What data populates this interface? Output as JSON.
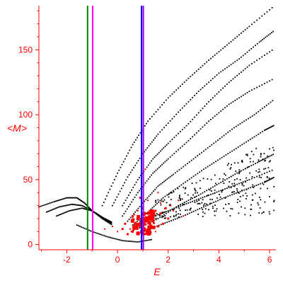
{
  "chart_data": {
    "type": "scatter",
    "title": "",
    "xlabel": "E",
    "ylabel": "<M>",
    "xlim": [
      -3.1,
      6.25
    ],
    "ylim": [
      -4,
      184
    ],
    "x_ticks": [
      -2,
      0,
      2,
      4,
      6
    ],
    "y_ticks": [
      0,
      50,
      100,
      150
    ],
    "grid": false,
    "legend": "none",
    "colors": {
      "axes": "#ff0000",
      "black_points": "#000000",
      "red_points": "#ff0000",
      "line_green": "#008000",
      "line_magenta": "#ff00ff",
      "line_blue": "#0000ff",
      "line_purple": "#a000e0"
    },
    "vertical_lines": [
      {
        "name": "green",
        "x": -1.18,
        "color": "#008000"
      },
      {
        "name": "magenta",
        "x": -0.98,
        "color": "#ff00ff"
      },
      {
        "name": "blue",
        "x": 0.95,
        "color": "#0000ff"
      },
      {
        "name": "purple",
        "x": 1.02,
        "color": "#a000e0"
      }
    ],
    "black_curves": [
      {
        "x": [
          -3.1,
          -2.5,
          -2.0,
          -1.6,
          -1.3,
          -1.0,
          -0.6,
          -0.2
        ],
        "y": [
          29,
          33,
          36,
          36,
          32,
          26,
          20,
          15
        ]
      },
      {
        "x": [
          -2.8,
          -2.3,
          -1.8,
          -1.4,
          -1.0,
          -0.6,
          -0.2
        ],
        "y": [
          25,
          29,
          31,
          30,
          26,
          21,
          16
        ]
      },
      {
        "x": [
          -2.4,
          -1.9,
          -1.4,
          -1.0,
          -0.6,
          -0.2
        ],
        "y": [
          22,
          26,
          28,
          26,
          21,
          17
        ]
      },
      {
        "x": [
          -0.6,
          0.0,
          0.6,
          1.2,
          2.0,
          2.8,
          3.6,
          4.4,
          5.2,
          6.2
        ],
        "y": [
          30,
          55,
          77,
          95,
          113,
          128,
          142,
          155,
          168,
          184
        ]
      },
      {
        "x": [
          -0.2,
          0.4,
          1.0,
          1.6,
          2.4,
          3.2,
          4.0,
          4.8,
          5.6,
          6.2
        ],
        "y": [
          30,
          52,
          70,
          85,
          102,
          118,
          132,
          143,
          156,
          165
        ]
      },
      {
        "x": [
          0.2,
          0.8,
          1.4,
          2.0,
          2.8,
          3.6,
          4.4,
          5.2,
          6.2
        ],
        "y": [
          30,
          50,
          66,
          78,
          93,
          110,
          125,
          138,
          151
        ]
      },
      {
        "x": [
          0.2,
          0.8,
          1.4,
          2.0,
          2.8,
          3.6,
          4.4,
          5.2,
          6.2
        ],
        "y": [
          22,
          40,
          55,
          66,
          80,
          95,
          108,
          118,
          128
        ]
      },
      {
        "x": [
          0.4,
          1.0,
          1.6,
          2.2,
          3.0,
          3.8,
          4.6,
          5.4,
          6.2
        ],
        "y": [
          18,
          32,
          45,
          54,
          66,
          78,
          90,
          100,
          112
        ]
      },
      {
        "x": [
          0.6,
          1.2,
          1.8,
          2.6,
          3.4,
          4.2,
          5.0,
          5.8,
          6.2
        ],
        "y": [
          15,
          25,
          36,
          47,
          58,
          68,
          78,
          88,
          92
        ]
      },
      {
        "x": [
          0.8,
          1.6,
          2.4,
          3.2,
          4.0,
          4.8,
          5.6,
          6.2
        ],
        "y": [
          12,
          20,
          30,
          38,
          47,
          56,
          64,
          70
        ]
      },
      {
        "x": [
          1.0,
          1.8,
          2.6,
          3.4,
          4.2,
          5.0,
          5.8,
          6.2
        ],
        "y": [
          10,
          16,
          22,
          29,
          36,
          42,
          48,
          52
        ]
      },
      {
        "x": [
          -1.6,
          -1.0,
          -0.4,
          0.2,
          0.8,
          1.4
        ],
        "y": [
          15,
          10,
          6,
          3,
          2,
          4
        ]
      },
      {
        "x": [
          1.2,
          2.0,
          2.8,
          3.6,
          4.4,
          5.2,
          6.2
        ],
        "y": [
          20,
          26,
          32,
          38,
          44,
          50,
          58
        ]
      }
    ],
    "black_scatter_region": {
      "x": [
        1.5,
        6.2
      ],
      "y": [
        20,
        75
      ]
    },
    "red_points": [
      {
        "x": 0.9,
        "y": 16,
        "s": 4
      },
      {
        "x": 1.0,
        "y": 12,
        "s": 4
      },
      {
        "x": 0.8,
        "y": 20,
        "s": 4
      },
      {
        "x": 1.1,
        "y": 18,
        "s": 4
      },
      {
        "x": 0.7,
        "y": 14,
        "s": 4
      },
      {
        "x": 1.2,
        "y": 10,
        "s": 4
      },
      {
        "x": 0.6,
        "y": 10,
        "s": 3
      },
      {
        "x": 0.4,
        "y": 8,
        "s": 3
      },
      {
        "x": 0.2,
        "y": 12,
        "s": 3
      },
      {
        "x": 0.3,
        "y": 16,
        "s": 3
      },
      {
        "x": 1.3,
        "y": 22,
        "s": 3
      },
      {
        "x": 1.5,
        "y": 26,
        "s": 3
      },
      {
        "x": 1.7,
        "y": 24,
        "s": 3
      },
      {
        "x": 1.9,
        "y": 28,
        "s": 3
      },
      {
        "x": 2.0,
        "y": 20,
        "s": 3
      },
      {
        "x": 1.8,
        "y": 16,
        "s": 3
      },
      {
        "x": 1.6,
        "y": 14,
        "s": 3
      },
      {
        "x": 1.4,
        "y": 18,
        "s": 3
      },
      {
        "x": 1.0,
        "y": 28,
        "s": 3
      },
      {
        "x": 0.9,
        "y": 36,
        "s": 3
      },
      {
        "x": 1.1,
        "y": 58,
        "s": 2
      },
      {
        "x": 1.6,
        "y": 40,
        "s": 2
      },
      {
        "x": 2.4,
        "y": 34,
        "s": 2
      },
      {
        "x": 2.2,
        "y": 26,
        "s": 2
      },
      {
        "x": 1.3,
        "y": 8,
        "s": 2
      },
      {
        "x": 0.5,
        "y": 12,
        "s": 2
      },
      {
        "x": 0.0,
        "y": 10,
        "s": 2
      },
      {
        "x": -0.2,
        "y": 14,
        "s": 2
      },
      {
        "x": -0.5,
        "y": 12,
        "s": 2
      },
      {
        "x": 2.6,
        "y": 22,
        "s": 2
      },
      {
        "x": 1.7,
        "y": 32,
        "s": 2
      },
      {
        "x": 2.1,
        "y": 30,
        "s": 2
      },
      {
        "x": 0.8,
        "y": 26,
        "s": 2
      },
      {
        "x": 1.2,
        "y": 34,
        "s": 2
      },
      {
        "x": 0.6,
        "y": 22,
        "s": 2
      },
      {
        "x": 1.5,
        "y": 10,
        "s": 2
      }
    ]
  }
}
